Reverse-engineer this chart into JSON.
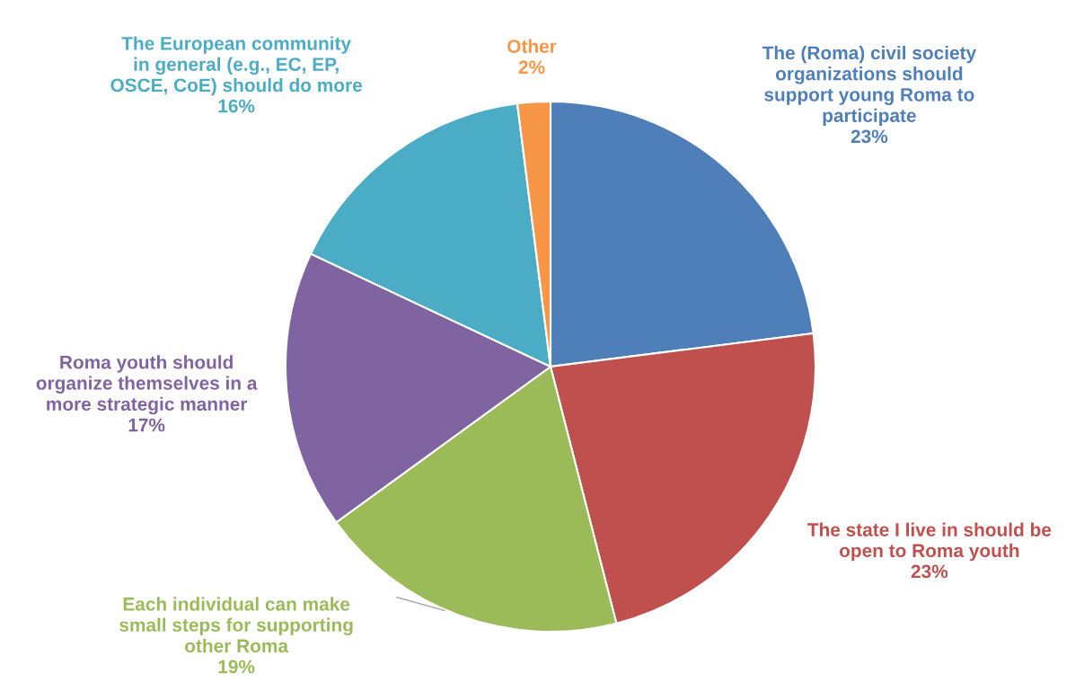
{
  "chart_data": {
    "type": "pie",
    "categories": [
      "The (Roma) civil society\norganizations should\nsupport young Roma to\nparticipate",
      "The state I live in should be\nopen to Roma youth",
      "Each individual can make\nsmall steps for supporting\nother Roma",
      "Roma youth should\norganize themselves in a\nmore strategic manner",
      "The European community\nin general (e.g., EC, EP,\nOSCE, CoE) should do more",
      "Other"
    ],
    "values": [
      23,
      23,
      19,
      17,
      16,
      2
    ],
    "value_labels": [
      "23%",
      "23%",
      "19%",
      "17%",
      "16%",
      "2%"
    ],
    "colors": [
      "#4f7fb8",
      "#c0504d",
      "#9bbb59",
      "#8064a2",
      "#4bacc6",
      "#f79646"
    ]
  }
}
